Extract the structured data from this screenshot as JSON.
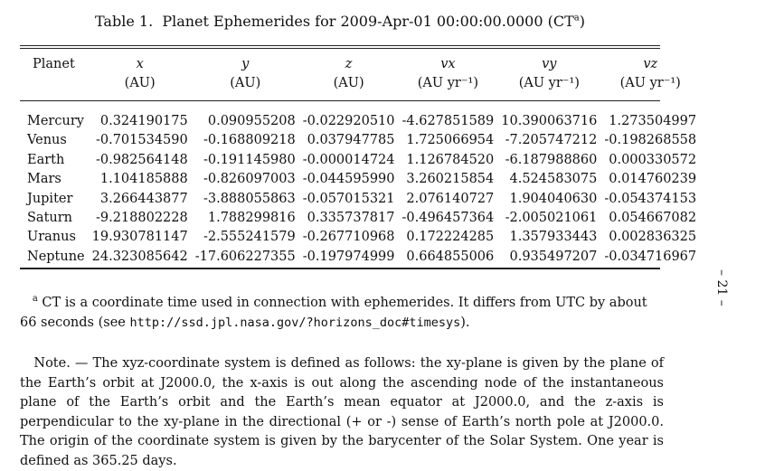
{
  "caption": {
    "label": "Table 1.",
    "title": "Planet Ephemerides for 2009-Apr-01 00:00:00.0000 (CT",
    "sup": "a",
    "close": ")"
  },
  "table": {
    "headers": [
      {
        "name": "Planet",
        "unit": ""
      },
      {
        "name": "x",
        "unit": "(AU)"
      },
      {
        "name": "y",
        "unit": "(AU)"
      },
      {
        "name": "z",
        "unit": "(AU)"
      },
      {
        "name": "vx",
        "unit": "(AU yr⁻¹)"
      },
      {
        "name": "vy",
        "unit": "(AU yr⁻¹)"
      },
      {
        "name": "vz",
        "unit": "(AU yr⁻¹)"
      }
    ],
    "rows": [
      [
        "Mercury",
        "0.324190175",
        "0.090955208",
        "-0.022920510",
        "-4.627851589",
        "10.390063716",
        "1.273504997"
      ],
      [
        "Venus",
        "-0.701534590",
        "-0.168809218",
        "0.037947785",
        "1.725066954",
        "-7.205747212",
        "-0.198268558"
      ],
      [
        "Earth",
        "-0.982564148",
        "-0.191145980",
        "-0.000014724",
        "1.126784520",
        "-6.187988860",
        "0.000330572"
      ],
      [
        "Mars",
        "1.104185888",
        "-0.826097003",
        "-0.044595990",
        "3.260215854",
        "4.524583075",
        "0.014760239"
      ],
      [
        "Jupiter",
        "3.266443877",
        "-3.888055863",
        "-0.057015321",
        "2.076140727",
        "1.904040630",
        "-0.054374153"
      ],
      [
        "Saturn",
        "-9.218802228",
        "1.788299816",
        "0.335737817",
        "-0.496457364",
        "-2.005021061",
        "0.054667082"
      ],
      [
        "Uranus",
        "19.930781147",
        "-2.555241579",
        "-0.267710968",
        "0.172224285",
        "1.357933443",
        "0.002836325"
      ],
      [
        "Neptune",
        "24.323085642",
        "-17.606227355",
        "-0.197974999",
        "0.664855006",
        "0.935497207",
        "-0.034716967"
      ]
    ]
  },
  "footnote": {
    "marker": "a",
    "text": "CT is a coordinate time used in connection with ephemerides. It differs from UTC by about 66 seconds (see ",
    "url": "http://ssd.jpl.nasa.gov/?horizons_doc#timesys",
    "tail": ")."
  },
  "note": {
    "text": "Note. — The xyz-coordinate system is defined as follows: the xy-plane is given by the plane of the Earth’s orbit at J2000.0, the x-axis is out along the ascending node of the instantaneous plane of the Earth’s orbit and the Earth’s mean equator at J2000.0, and the z-axis is perpendicular to the xy-plane in the directional (+ or -) sense of Earth’s north pole at J2000.0. The origin of the coordinate system is given by the barycenter of the Solar System. One year is defined as 365.25 days."
  },
  "page_number": "– 21 –"
}
